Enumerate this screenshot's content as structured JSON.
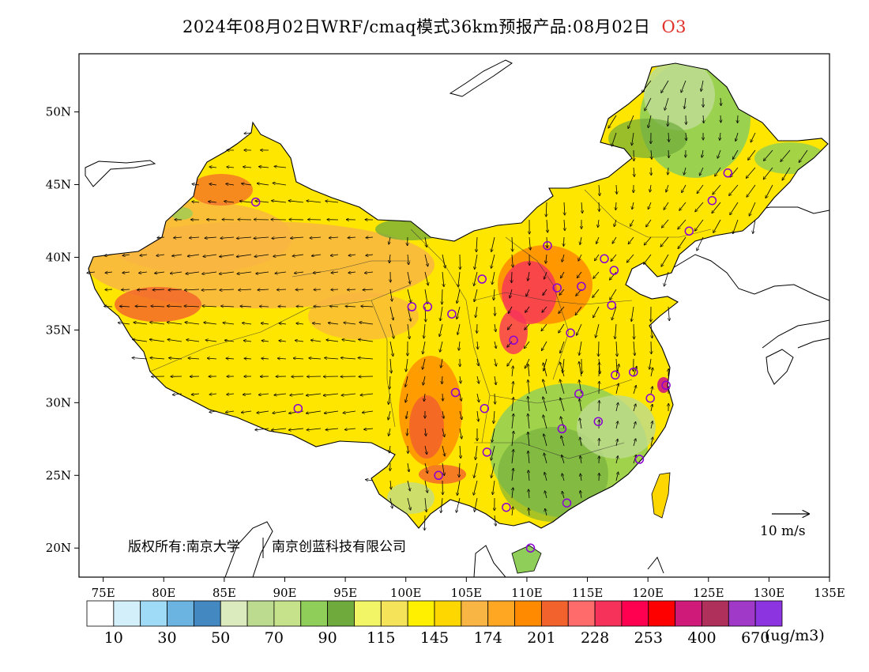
{
  "title": {
    "main": "2024年08月02日WRF/cmaq模式36km预报产品:08月02日",
    "species": "O3"
  },
  "axes": {
    "lon_labels": [
      "75E",
      "80E",
      "85E",
      "90E",
      "95E",
      "100E",
      "105E",
      "110E",
      "115E",
      "120E",
      "125E",
      "130E",
      "135E"
    ],
    "lat_labels": [
      "20N",
      "25N",
      "30N",
      "35N",
      "40N",
      "45N",
      "50N"
    ],
    "lon_range": [
      73,
      135
    ],
    "lat_range": [
      18,
      54
    ]
  },
  "copyright": {
    "line1": "版权所有:南京大学",
    "line2": "南京创蓝科技有限公司"
  },
  "wind_scale": {
    "label": "10 m/s",
    "icon": "arrow-right-icon"
  },
  "colorbar": {
    "colors": [
      "#ffffff",
      "#d2effa",
      "#9fdaf6",
      "#6bb3e0",
      "#4488c2",
      "#dcebbe",
      "#bddb8f",
      "#c6e28a",
      "#8fce58",
      "#6fab3c",
      "#f2f565",
      "#f5e45a",
      "#fff000",
      "#ffd700",
      "#f9b543",
      "#ffa623",
      "#ff8a00",
      "#f2622c",
      "#ff6a6a",
      "#f7325a",
      "#ff0050",
      "#ff0000",
      "#d01a7a",
      "#b0305c",
      "#a038c8",
      "#8c34e0"
    ],
    "labels": [
      "10",
      "30",
      "50",
      "70",
      "90",
      "115",
      "145",
      "174",
      "201",
      "228",
      "253",
      "400",
      "670"
    ],
    "unit": "(ug/m3)"
  },
  "cities": [
    {
      "lon": 87.6,
      "lat": 43.8
    },
    {
      "lon": 91.1,
      "lat": 29.6
    },
    {
      "lon": 101.8,
      "lat": 36.6
    },
    {
      "lon": 103.8,
      "lat": 36.1
    },
    {
      "lon": 106.3,
      "lat": 38.5
    },
    {
      "lon": 100.5,
      "lat": 36.6
    },
    {
      "lon": 104.1,
      "lat": 30.7
    },
    {
      "lon": 106.5,
      "lat": 29.6
    },
    {
      "lon": 106.7,
      "lat": 26.6
    },
    {
      "lon": 102.7,
      "lat": 25.0
    },
    {
      "lon": 108.3,
      "lat": 22.8
    },
    {
      "lon": 110.3,
      "lat": 20.0
    },
    {
      "lon": 113.3,
      "lat": 23.1
    },
    {
      "lon": 112.9,
      "lat": 28.2
    },
    {
      "lon": 114.3,
      "lat": 30.6
    },
    {
      "lon": 115.9,
      "lat": 28.7
    },
    {
      "lon": 119.3,
      "lat": 26.1
    },
    {
      "lon": 120.2,
      "lat": 30.3
    },
    {
      "lon": 121.5,
      "lat": 31.2
    },
    {
      "lon": 118.8,
      "lat": 32.1
    },
    {
      "lon": 117.3,
      "lat": 31.9
    },
    {
      "lon": 113.6,
      "lat": 34.8
    },
    {
      "lon": 117.0,
      "lat": 36.7
    },
    {
      "lon": 108.9,
      "lat": 34.3
    },
    {
      "lon": 112.5,
      "lat": 37.9
    },
    {
      "lon": 114.5,
      "lat": 38.0
    },
    {
      "lon": 111.7,
      "lat": 40.8
    },
    {
      "lon": 116.4,
      "lat": 39.9
    },
    {
      "lon": 117.2,
      "lat": 39.1
    },
    {
      "lon": 123.4,
      "lat": 41.8
    },
    {
      "lon": 125.3,
      "lat": 43.9
    },
    {
      "lon": 126.6,
      "lat": 45.8
    }
  ]
}
